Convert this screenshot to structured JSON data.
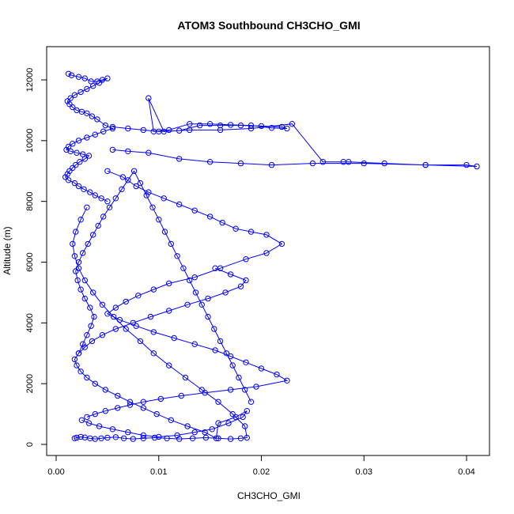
{
  "chart_data": {
    "type": "line",
    "title": "ATOM3 Southbound CH3CHO_GMI",
    "xlabel": "CH3CHO_GMI",
    "ylabel": "Altitude (m)",
    "xlim": [
      0,
      0.043
    ],
    "ylim": [
      0,
      13000
    ],
    "xticks": [
      0.0,
      0.01,
      0.02,
      0.03,
      0.04
    ],
    "xtick_labels": [
      "0.00",
      "0.01",
      "0.02",
      "0.03",
      "0.04"
    ],
    "yticks": [
      0,
      2000,
      4000,
      6000,
      8000,
      10000,
      12000
    ],
    "ytick_labels": [
      "0",
      "2000",
      "4000",
      "6000",
      "8000",
      "10000",
      "12000"
    ],
    "grid": false,
    "legend": "none",
    "markers": "open circles",
    "series_color": "#0000ff",
    "series": [
      {
        "x": [
          0.0012,
          0.0015,
          0.0022,
          0.0028,
          0.0034,
          0.004,
          0.0045,
          0.005,
          0.0042,
          0.0036,
          0.003,
          0.0024,
          0.0018,
          0.0014,
          0.0011,
          0.0013,
          0.0016,
          0.002,
          0.0025,
          0.003,
          0.0035,
          0.004,
          0.0048,
          0.0055,
          0.0046,
          0.0038,
          0.003,
          0.0022,
          0.0016,
          0.0012,
          0.001,
          0.0014,
          0.002,
          0.0026,
          0.0032,
          0.0028,
          0.0023,
          0.0019,
          0.0016,
          0.0013,
          0.0011,
          0.0009,
          0.0012,
          0.0018,
          0.0022,
          0.0027,
          0.0033,
          0.0038,
          0.0044,
          0.005
        ],
        "y": [
          12200,
          12150,
          12100,
          12050,
          11950,
          11950,
          12000,
          12050,
          11900,
          11800,
          11700,
          11600,
          11500,
          11400,
          11300,
          11200,
          11100,
          11000,
          10950,
          10900,
          10800,
          10700,
          10500,
          10400,
          10300,
          10200,
          10100,
          10000,
          9900,
          9800,
          9700,
          9650,
          9600,
          9550,
          9500,
          9400,
          9300,
          9200,
          9100,
          9000,
          8900,
          8800,
          8700,
          8600,
          8500,
          8400,
          8300,
          8200,
          8100,
          8000
        ]
      },
      {
        "x": [
          0.0055,
          0.007,
          0.0085,
          0.01,
          0.012,
          0.014,
          0.016,
          0.018,
          0.02,
          0.022,
          0.0225,
          0.021,
          0.019,
          0.017,
          0.015,
          0.013,
          0.011,
          0.0095,
          0.009,
          0.0105,
          0.013,
          0.016,
          0.019,
          0.023,
          0.026,
          0.028,
          0.0285,
          0.032,
          0.036,
          0.04,
          0.041,
          0.036,
          0.03,
          0.025,
          0.021,
          0.018,
          0.015,
          0.012,
          0.009,
          0.007,
          0.0055
        ],
        "y": [
          10450,
          10400,
          10350,
          10300,
          10330,
          10500,
          10500,
          10500,
          10480,
          10450,
          10400,
          10420,
          10500,
          10520,
          10550,
          10550,
          10350,
          10300,
          11400,
          10300,
          10350,
          10350,
          10400,
          10550,
          9300,
          9300,
          9300,
          9250,
          9200,
          9200,
          9150,
          9200,
          9250,
          9250,
          9200,
          9250,
          9300,
          9400,
          9600,
          9650,
          9700
        ]
      },
      {
        "x": [
          0.005,
          0.0065,
          0.0078,
          0.009,
          0.0105,
          0.012,
          0.0135,
          0.015,
          0.0162,
          0.0175,
          0.019,
          0.0205,
          0.022,
          0.0205,
          0.0185,
          0.016,
          0.0135,
          0.011,
          0.0095,
          0.008,
          0.0068,
          0.0058,
          0.005,
          0.0062,
          0.0078,
          0.0095,
          0.0115,
          0.0135,
          0.0155,
          0.017,
          0.0185,
          0.02,
          0.0215,
          0.0225,
          0.0195,
          0.017,
          0.0145,
          0.0122,
          0.0102,
          0.0085,
          0.0072,
          0.006,
          0.0048,
          0.0038,
          0.003
        ],
        "y": [
          9000,
          8800,
          8500,
          8300,
          8100,
          7900,
          7700,
          7500,
          7300,
          7100,
          7000,
          6900,
          6600,
          6300,
          6100,
          5800,
          5500,
          5300,
          5100,
          4900,
          4700,
          4500,
          4300,
          4100,
          3900,
          3700,
          3500,
          3300,
          3100,
          2900,
          2700,
          2500,
          2300,
          2100,
          1900,
          1800,
          1700,
          1600,
          1500,
          1400,
          1300,
          1200,
          1100,
          1000,
          900
        ]
      },
      {
        "x": [
          0.0025,
          0.0032,
          0.0042,
          0.0055,
          0.007,
          0.0085,
          0.01,
          0.0118,
          0.0135,
          0.0152,
          0.0168,
          0.0182,
          0.0186,
          0.0175,
          0.0158,
          0.0156,
          0.0145,
          0.0128,
          0.0112,
          0.0098,
          0.0085,
          0.0072,
          0.006,
          0.0048,
          0.0038,
          0.003,
          0.0024,
          0.002,
          0.0018,
          0.0022,
          0.0028,
          0.0035,
          0.0045,
          0.0058,
          0.0075,
          0.0092,
          0.011,
          0.0128,
          0.0148,
          0.0165,
          0.018,
          0.0185,
          0.017,
          0.0155
        ],
        "y": [
          800,
          700,
          600,
          500,
          400,
          300,
          250,
          300,
          400,
          500,
          700,
          900,
          1100,
          900,
          700,
          200,
          400,
          600,
          800,
          1000,
          1200,
          1400,
          1600,
          1800,
          2000,
          2200,
          2400,
          2600,
          2800,
          3000,
          3200,
          3400,
          3600,
          3800,
          4000,
          4200,
          4400,
          4600,
          4800,
          5000,
          5200,
          5400,
          5600,
          5800
        ]
      },
      {
        "x": [
          0.0018,
          0.002,
          0.0024,
          0.0028,
          0.0033,
          0.0038,
          0.0044,
          0.005,
          0.0058,
          0.0066,
          0.0075,
          0.0085,
          0.0096,
          0.0108,
          0.012,
          0.0133,
          0.0146,
          0.0158,
          0.017,
          0.018,
          0.0186,
          0.0184,
          0.0172,
          0.0158,
          0.0142,
          0.0126,
          0.011,
          0.0095,
          0.0082,
          0.0068,
          0.0056,
          0.0045,
          0.0036,
          0.0028,
          0.0022,
          0.0018,
          0.0016,
          0.0019,
          0.0024,
          0.003
        ],
        "y": [
          200,
          220,
          250,
          230,
          200,
          180,
          200,
          220,
          240,
          200,
          180,
          200,
          220,
          200,
          180,
          200,
          220,
          200,
          180,
          200,
          220,
          600,
          1000,
          1400,
          1800,
          2200,
          2600,
          3000,
          3400,
          3800,
          4200,
          4600,
          5000,
          5400,
          5800,
          6200,
          6600,
          7000,
          7400,
          7800
        ]
      },
      {
        "x": [
          0.0022,
          0.0026,
          0.003,
          0.0034,
          0.0037,
          0.0033,
          0.0028,
          0.0024,
          0.0021,
          0.0019,
          0.0022,
          0.0026,
          0.0031,
          0.0036,
          0.0041,
          0.0046,
          0.0052,
          0.0058,
          0.0064,
          0.007,
          0.0076,
          0.0082,
          0.0088,
          0.0094,
          0.01,
          0.0106,
          0.0112,
          0.0118,
          0.0124,
          0.013,
          0.0136,
          0.0142,
          0.0148,
          0.0154,
          0.016,
          0.0166,
          0.0172,
          0.0178,
          0.0184,
          0.019
        ],
        "y": [
          3000,
          3300,
          3600,
          3900,
          4200,
          4500,
          4800,
          5100,
          5400,
          5700,
          6000,
          6300,
          6600,
          6900,
          7200,
          7500,
          7800,
          8100,
          8400,
          8700,
          9000,
          8600,
          8200,
          7800,
          7400,
          7000,
          6600,
          6200,
          5800,
          5400,
          5000,
          4600,
          4200,
          3800,
          3400,
          3000,
          2600,
          2200,
          1800,
          1400
        ]
      }
    ]
  }
}
